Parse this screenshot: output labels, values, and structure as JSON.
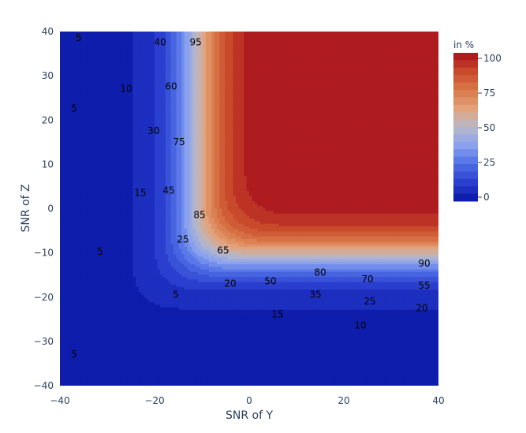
{
  "chart_data": {
    "type": "heatmap",
    "xlabel": "SNR of Y",
    "ylabel": "SNR of Z",
    "xlim": [
      -40,
      40
    ],
    "ylim": [
      -40,
      40
    ],
    "x_ticks": [
      "−40",
      "−20",
      "0",
      "20",
      "40"
    ],
    "y_ticks": [
      "−40",
      "−30",
      "−20",
      "−10",
      "0",
      "10",
      "20",
      "30",
      "40"
    ],
    "colorbar": {
      "title": "in %",
      "range": [
        0,
        100
      ],
      "ticks": [
        "0",
        "25",
        "50",
        "75",
        "100"
      ],
      "colorscale": [
        "#0a16a6",
        "#2a3fcf",
        "#4f6ee6",
        "#8aa2ee",
        "#b8b8c8",
        "#e3a27a",
        "#d97848",
        "#c94a2a",
        "#a8101e"
      ]
    },
    "z_description": "Percentage (in %) as a function of SNR of Y and SNR of Z; high (~100) where both SNRs are greater than about -10, low (~5) where either SNR is below about -20",
    "contour_levels": [
      5,
      10,
      15,
      20,
      25,
      30,
      35,
      40,
      45,
      50,
      55,
      60,
      65,
      70,
      75,
      80,
      85,
      90,
      95
    ],
    "contour_labels": [
      {
        "text": "5",
        "x": -36,
        "y": 38.5
      },
      {
        "text": "5",
        "x": -37,
        "y": 22.5
      },
      {
        "text": "10",
        "x": -26,
        "y": 27
      },
      {
        "text": "40",
        "x": -18.8,
        "y": 37.5
      },
      {
        "text": "60",
        "x": -16.5,
        "y": 27.5
      },
      {
        "text": "95",
        "x": -11.3,
        "y": 37.5
      },
      {
        "text": "30",
        "x": -20.2,
        "y": 17.5
      },
      {
        "text": "75",
        "x": -14.8,
        "y": 15
      },
      {
        "text": "15",
        "x": -23,
        "y": 3.5
      },
      {
        "text": "45",
        "x": -17,
        "y": 4
      },
      {
        "text": "85",
        "x": -10.5,
        "y": -1.5
      },
      {
        "text": "25",
        "x": -14,
        "y": -7
      },
      {
        "text": "65",
        "x": -5.5,
        "y": -9.5
      },
      {
        "text": "5",
        "x": -31.5,
        "y": -9.8
      },
      {
        "text": "20",
        "x": -4,
        "y": -17
      },
      {
        "text": "50",
        "x": 4.5,
        "y": -16.5
      },
      {
        "text": "80",
        "x": 15,
        "y": -14.5
      },
      {
        "text": "70",
        "x": 25,
        "y": -16
      },
      {
        "text": "90",
        "x": 37,
        "y": -12.5
      },
      {
        "text": "35",
        "x": 14,
        "y": -19.5
      },
      {
        "text": "55",
        "x": 37,
        "y": -17.5
      },
      {
        "text": "5",
        "x": -15.5,
        "y": -19.5
      },
      {
        "text": "25",
        "x": 25.5,
        "y": -21
      },
      {
        "text": "20",
        "x": 36.5,
        "y": -22.5
      },
      {
        "text": "15",
        "x": 6,
        "y": -24
      },
      {
        "text": "10",
        "x": 23.5,
        "y": -26.5
      },
      {
        "text": "5",
        "x": -37,
        "y": -33
      }
    ]
  }
}
